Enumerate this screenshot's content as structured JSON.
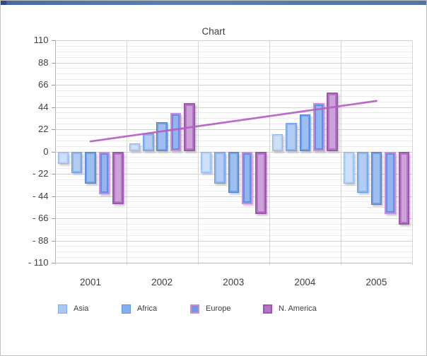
{
  "window": {
    "top_strip_color_left": "#2f4c82",
    "top_strip_color_main": "#5d7fae"
  },
  "chart_title": "Chart",
  "y_axis": {
    "tick_labels": [
      "110",
      "88",
      "66",
      "44",
      "22",
      "0",
      "- 22",
      "- 44",
      "- 66",
      "- 88",
      "- 110"
    ],
    "tick_values": [
      110,
      88,
      66,
      44,
      22,
      0,
      -22,
      -44,
      -66,
      -88,
      -110
    ]
  },
  "x_axis": {
    "categories": [
      "2001",
      "2002",
      "2003",
      "2004",
      "2005"
    ]
  },
  "legend": {
    "items": [
      {
        "label": "Asia",
        "fill": "#a9c9f3",
        "border": "#7fabe8",
        "border_width": 1.5
      },
      {
        "label": "Africa",
        "fill": "#85aeec",
        "border": "#6394e0",
        "border_width": 1.5
      },
      {
        "label": "Europe",
        "fill": "#6b9ae9",
        "border": "#cf8ad8",
        "border_width": 2
      },
      {
        "label": "N. America",
        "fill": "#b475c7",
        "border": "#9d56ad",
        "border_width": 2
      }
    ]
  },
  "colors": {
    "gridline_major": "#d2d2d2",
    "gridline_minor": "#ebebeb",
    "axis": "#b9b9b9",
    "text": "#3f3f3f",
    "trendline": "#b560c2"
  },
  "chart_data": {
    "type": "bar",
    "title": "Chart",
    "categories": [
      "2001",
      "2002",
      "2003",
      "2004",
      "2005"
    ],
    "series": [
      {
        "name": "Asia",
        "fill": "#b6d2f6",
        "border": "#8fb7ee",
        "border_width": 1,
        "values": [
          -12,
          8,
          -21,
          17,
          -32
        ]
      },
      {
        "name": "Africa",
        "fill": "#8cb4ef",
        "border": "#6f9ee8",
        "border_width": 1,
        "values": [
          -21,
          18,
          -32,
          28,
          -41
        ]
      },
      {
        "name": "",
        "fill": "#6f9ee9",
        "border": "#4f82dc",
        "border_width": 1,
        "values": [
          -32,
          29,
          -41,
          37,
          -53
        ]
      },
      {
        "name": "Europe",
        "fill": "#5f8fe6",
        "border": "#cf8ad8",
        "border_width": 2,
        "values": [
          -42,
          38,
          -52,
          48,
          -62
        ]
      },
      {
        "name": "N. America",
        "fill": "#b475c7",
        "border": "#9d56ad",
        "border_width": 2.5,
        "values": [
          -52,
          48,
          -62,
          58,
          -72
        ]
      }
    ],
    "trendline": {
      "color": "#b560c2",
      "x": [
        "2001",
        "2005"
      ],
      "values": [
        10,
        50
      ],
      "values_per_category": [
        10,
        20,
        30,
        40,
        50
      ]
    },
    "ylim": [
      -110,
      110
    ],
    "y_major_unit": 22,
    "y_minor_unit": 5.5,
    "grid": "horizontal major+minor, vertical category boundaries",
    "legend_position": "bottom"
  }
}
